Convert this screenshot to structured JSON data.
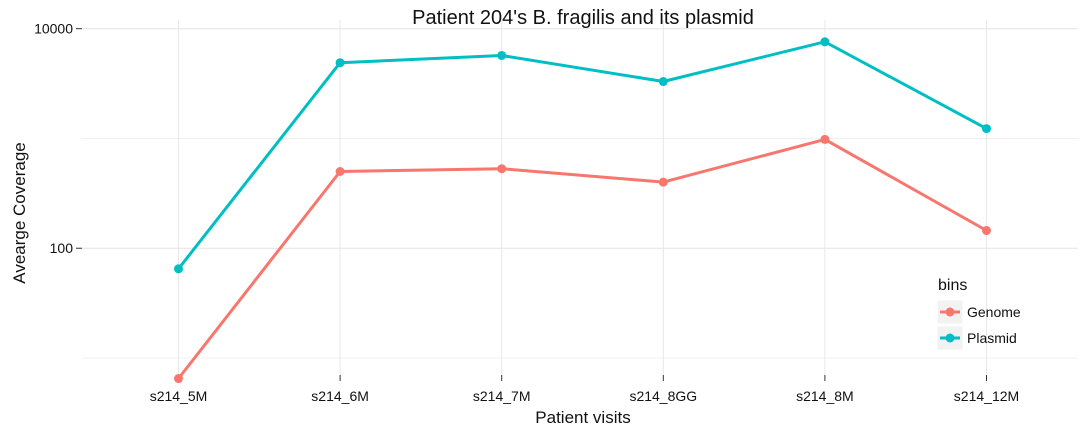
{
  "chart_data": {
    "type": "line",
    "title": "Patient 204's B. fragilis and its plasmid",
    "xlabel": "Patient visits",
    "ylabel": "Avearge Coverage",
    "yscale": "log10",
    "ylim": [
      7,
      12000
    ],
    "yticks": [
      100,
      10000
    ],
    "ytick_labels": [
      "100",
      "10000"
    ],
    "grid": true,
    "legend_position": "right",
    "legend_title": "bins",
    "categories": [
      "s214_5M",
      "s214_6M",
      "s214_7M",
      "s214_8GG",
      "s214_8M",
      "s214_12M"
    ],
    "series": [
      {
        "name": "Genome",
        "color": "#F8766D",
        "values": [
          6.5,
          500,
          530,
          400,
          980,
          145
        ]
      },
      {
        "name": "Plasmid",
        "color": "#00BFC4",
        "values": [
          65,
          4900,
          5700,
          3300,
          7600,
          1230
        ]
      }
    ]
  }
}
